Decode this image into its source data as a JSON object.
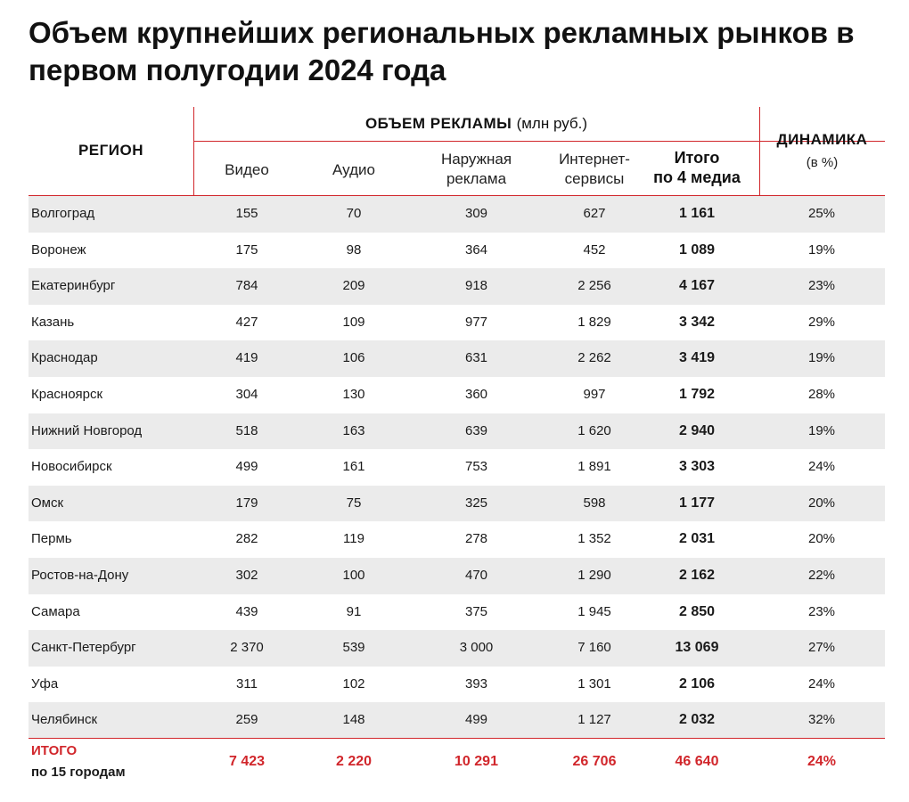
{
  "title": "Объем крупнейших региональных рекламных рынков в первом полугодии 2024 года",
  "header": {
    "region": "РЕГИОН",
    "volume": "ОБЪЕМ РЕКЛАМЫ",
    "volume_unit": "(млн руб.)",
    "dynamics": "ДИНАМИКА",
    "dynamics_unit": "(в %)",
    "col_video": "Видео",
    "col_audio": "Аудио",
    "col_outdoor_1": "Наружная",
    "col_outdoor_2": "реклама",
    "col_internet_1": "Интернет-",
    "col_internet_2": "сервисы",
    "col_total_1": "Итого",
    "col_total_2": "по 4 медиа"
  },
  "rows": [
    {
      "region": "Волгоград",
      "video": "155",
      "audio": "70",
      "outdoor": "309",
      "internet": "627",
      "total": "1 161",
      "dynamics": "25%"
    },
    {
      "region": "Воронеж",
      "video": "175",
      "audio": "98",
      "outdoor": "364",
      "internet": "452",
      "total": "1 089",
      "dynamics": "19%"
    },
    {
      "region": "Екатеринбург",
      "video": "784",
      "audio": "209",
      "outdoor": "918",
      "internet": "2 256",
      "total": "4 167",
      "dynamics": "23%"
    },
    {
      "region": "Казань",
      "video": "427",
      "audio": "109",
      "outdoor": "977",
      "internet": "1 829",
      "total": "3 342",
      "dynamics": "29%"
    },
    {
      "region": "Краснодар",
      "video": "419",
      "audio": "106",
      "outdoor": "631",
      "internet": "2 262",
      "total": "3 419",
      "dynamics": "19%"
    },
    {
      "region": "Красноярск",
      "video": "304",
      "audio": "130",
      "outdoor": "360",
      "internet": "997",
      "total": "1 792",
      "dynamics": "28%"
    },
    {
      "region": "Нижний Новгород",
      "video": "518",
      "audio": "163",
      "outdoor": "639",
      "internet": "1 620",
      "total": "2 940",
      "dynamics": "19%"
    },
    {
      "region": "Новосибирск",
      "video": "499",
      "audio": "161",
      "outdoor": "753",
      "internet": "1 891",
      "total": "3 303",
      "dynamics": "24%"
    },
    {
      "region": "Омск",
      "video": "179",
      "audio": "75",
      "outdoor": "325",
      "internet": "598",
      "total": "1 177",
      "dynamics": "20%"
    },
    {
      "region": "Пермь",
      "video": "282",
      "audio": "119",
      "outdoor": "278",
      "internet": "1 352",
      "total": "2 031",
      "dynamics": "20%"
    },
    {
      "region": "Ростов-на-Дону",
      "video": "302",
      "audio": "100",
      "outdoor": "470",
      "internet": "1 290",
      "total": "2 162",
      "dynamics": "22%"
    },
    {
      "region": "Самара",
      "video": "439",
      "audio": "91",
      "outdoor": "375",
      "internet": "1 945",
      "total": "2 850",
      "dynamics": "23%"
    },
    {
      "region": "Санкт-Петербург",
      "video": "2 370",
      "audio": "539",
      "outdoor": "3 000",
      "internet": "7 160",
      "total": "13 069",
      "dynamics": "27%"
    },
    {
      "region": "Уфа",
      "video": "311",
      "audio": "102",
      "outdoor": "393",
      "internet": "1 301",
      "total": "2 106",
      "dynamics": "24%"
    },
    {
      "region": "Челябинск",
      "video": "259",
      "audio": "148",
      "outdoor": "499",
      "internet": "1 127",
      "total": "2 032",
      "dynamics": "32%"
    }
  ],
  "footer": {
    "label_1": "ИТОГО",
    "label_2": "по 15 городам",
    "video": "7 423",
    "audio": "2 220",
    "outdoor": "10 291",
    "internet": "26 706",
    "total": "46 640",
    "dynamics": "24%"
  },
  "colors": {
    "accent": "#d1262b",
    "row_shade": "#ebebeb",
    "text": "#1a1a1a"
  }
}
